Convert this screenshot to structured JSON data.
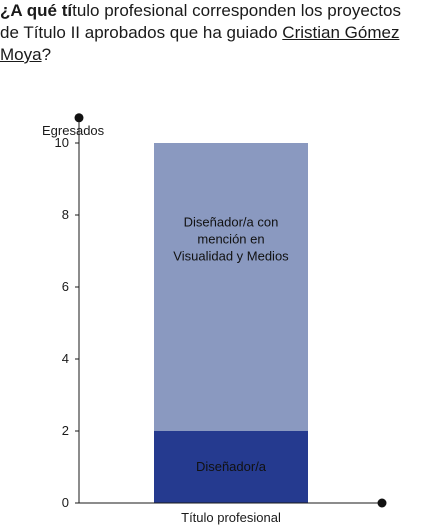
{
  "question": {
    "prefix_bold": "¿A qué tí",
    "text": "tulo profesional corresponden los proyectos de Título II aprobados que ha guiado ",
    "link": "Cristian Gómez Moya",
    "suffix": "?"
  },
  "chart_data": {
    "type": "bar",
    "stacked": true,
    "ylabel": "Egresados",
    "xlabel": "Título profesional",
    "ylim": [
      0,
      10.7
    ],
    "yticks": [
      0,
      2,
      4,
      6,
      8,
      10
    ],
    "grid": false,
    "categories": [
      "Título profesional"
    ],
    "series": [
      {
        "name": "Diseñador/a",
        "values": [
          2
        ],
        "label_lines": [
          "Diseñador/a"
        ],
        "color": "#253a8f"
      },
      {
        "name": "Diseñador/a con mención en Visualidad y Medios",
        "values": [
          8
        ],
        "label_lines": [
          "Diseñador/a con",
          "mención en",
          "Visualidad y Medios"
        ],
        "color": "#8a99c0"
      }
    ]
  }
}
